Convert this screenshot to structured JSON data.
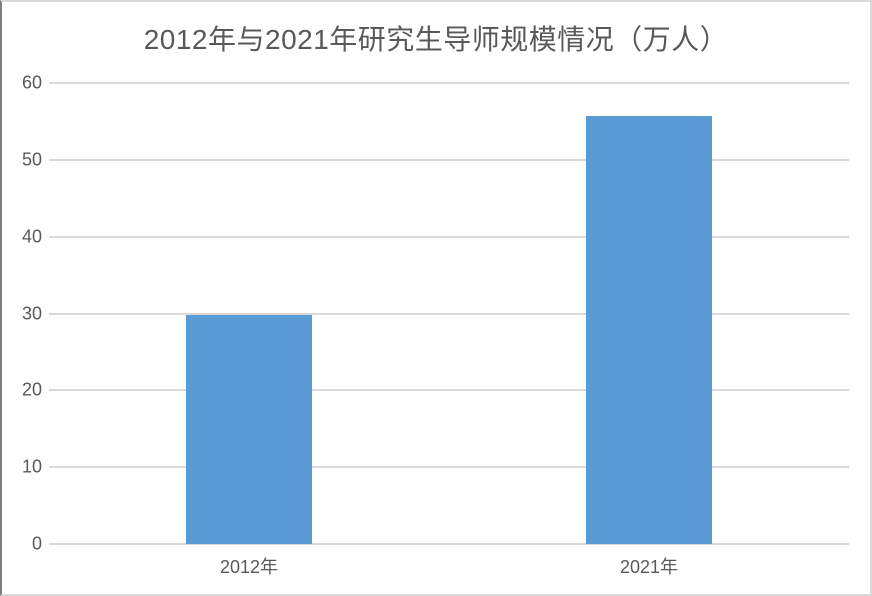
{
  "title": "2012年与2021年研究生导师规模情况（万人）",
  "colors": {
    "bar": "#5b9bd5",
    "gridline": "#d9d9d9",
    "axis_text": "#595959",
    "title_text": "#595959",
    "frame_border_light": "#d9d9d9",
    "frame_border_dark": "#808080"
  },
  "chart_data": {
    "type": "bar",
    "categories": [
      "2012年",
      "2021年"
    ],
    "values": [
      29.8,
      55.7
    ],
    "title": "2012年与2021年研究生导师规模情况（万人）",
    "xlabel": "",
    "ylabel": "",
    "ylim": [
      0,
      60
    ],
    "yticks": [
      0,
      10,
      20,
      30,
      40,
      50,
      60
    ],
    "grid": true,
    "legend": false,
    "legend_position": "none",
    "bar_color": "#5b9bd5"
  }
}
